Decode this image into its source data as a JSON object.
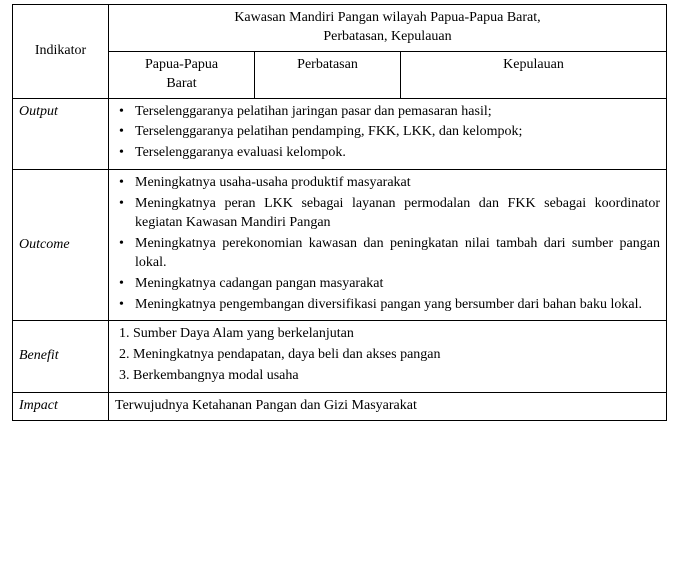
{
  "header": {
    "indikator": "Indikator",
    "span_title_l1": "Kawasan Mandiri Pangan wilayah Papua-Papua Barat,",
    "span_title_l2": "Perbatasan, Kepulauan",
    "col_a_l1": "Papua-Papua",
    "col_a_l2": "Barat",
    "col_b": "Perbatasan",
    "col_c": "Kepulauan"
  },
  "rows": {
    "output": {
      "label": "Output",
      "items": [
        "Terselenggaranya pelatihan jaringan pasar dan pemasaran hasil;",
        "Terselenggaranya pelatihan pendamping, FKK, LKK, dan kelompok;",
        "Terselenggaranya evaluasi kelompok."
      ]
    },
    "outcome": {
      "label": "Outcome",
      "items": [
        "Meningkatnya usaha-usaha produktif masyarakat",
        "Meningkatnya peran LKK sebagai layanan permodalan dan FKK sebagai koordinator kegiatan Kawasan Mandiri Pangan",
        "Meningkatnya perekonomian kawasan dan peningkatan nilai tambah dari sumber pangan lokal.",
        "Meningkatnya cadangan pangan masyarakat",
        "Meningkatnya pengembangan diversifikasi pangan yang bersumber dari bahan baku lokal."
      ]
    },
    "benefit": {
      "label": "Benefit",
      "items": [
        "Sumber Daya Alam yang berkelanjutan",
        "Meningkatnya pendapatan, daya beli dan akses pangan",
        "Berkembangnya modal usaha"
      ]
    },
    "impact": {
      "label": "Impact",
      "text": "Terwujudnya Ketahanan Pangan dan Gizi Masyarakat"
    }
  },
  "style": {
    "font_family": "Bookman Old Style",
    "font_size_pt": 11,
    "text_color": "#000000",
    "border_color": "#000000",
    "background": "#ffffff"
  }
}
